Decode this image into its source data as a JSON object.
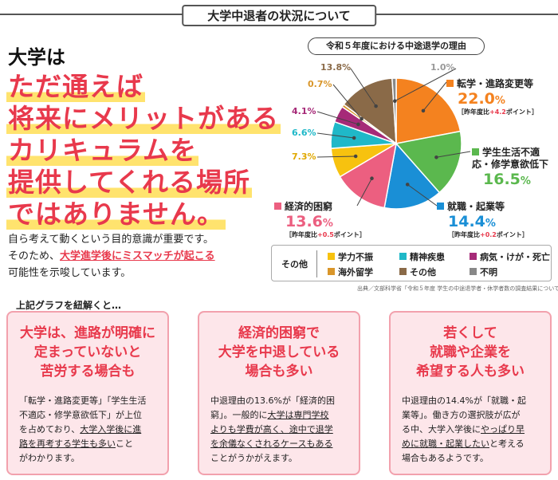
{
  "header": {
    "title": "大学中退者の状況について"
  },
  "headline": {
    "sub": "大学は",
    "lines": [
      "ただ通えば",
      "将来にメリットがある",
      "カリキュラムを",
      "提供してくれる場所",
      "ではありません。"
    ]
  },
  "body": {
    "p1": "自ら考えて動くという目的意識が重要です。",
    "p2a": "そのため、",
    "p2b": "大学進学後にミスマッチが起こる",
    "p3": "可能性を示唆しています。"
  },
  "chart_title": "令和５年度における中途退学の理由",
  "chart_data": {
    "type": "pie",
    "title": "令和５年度における中途退学の理由",
    "unit": "%",
    "slices": [
      {
        "label": "転学・進路変更等",
        "value": 22.0,
        "display": "22.0",
        "note_prefix": "［昨年度比",
        "note_change": "+4.2",
        "note_suffix": "ポイント］",
        "color": "#f4821f"
      },
      {
        "label": "学生生活不適応・修学意欲低下",
        "value": 16.5,
        "display": "16.5",
        "color": "#5bb84e"
      },
      {
        "label": "就職・起業等",
        "value": 14.4,
        "display": "14.4",
        "note_prefix": "［昨年度比",
        "note_change": "+0.2",
        "note_suffix": "ポイント］",
        "color": "#1a8fd6"
      },
      {
        "label": "経済的困窮",
        "value": 13.6,
        "display": "13.6",
        "note_prefix": "［昨年度比",
        "note_change": "+0.5",
        "note_suffix": "ポイント］",
        "color": "#ec5f80"
      },
      {
        "label": "学力不振",
        "value": 7.3,
        "display": "7.3%",
        "color": "#f7c20f"
      },
      {
        "label": "精神疾患",
        "value": 6.6,
        "display": "6.6%",
        "color": "#1fb8c8"
      },
      {
        "label": "病気・けが・死亡",
        "value": 4.1,
        "display": "4.1%",
        "color": "#a62a78"
      },
      {
        "label": "海外留学",
        "value": 0.7,
        "display": "0.7%",
        "color": "#d9962a"
      },
      {
        "label": "その他",
        "value": 13.8,
        "display": "13.8%",
        "color": "#8a6a48"
      },
      {
        "label": "不明",
        "value": 1.0,
        "display": "1.0%",
        "color": "#888888"
      }
    ]
  },
  "other_box": {
    "label": "その他"
  },
  "source": "出典／文部科学省「令和５年度 学生の中途退学者・休学者数の調査結果について」",
  "interp_title": "上記グラフを紐解くと…",
  "cards": [
    {
      "title1": "大学は、進路が明確に",
      "title2": "定まっていないと",
      "title3": "苦労する場合も",
      "t1": "「転学・進路変更等」「学生生活",
      "t2": "不適応・修学意欲低下」が上位",
      "t3a": "を占めており、",
      "t3b": "大学入学後に進",
      "t4a": "路を再考する学生も多い",
      "t4b": "こと",
      "t5": "がわかります。"
    },
    {
      "title1": "経済的困窮で",
      "title2": "大学を中退している",
      "title3": "場合も多い",
      "t1": "中退理由の13.6%が「経済的困",
      "t2a": "窮」。一般的に",
      "t2b": "大学は専門学校",
      "t3": "よりも学費が高く、途中で退学",
      "t4": "を余儀なくされるケースもある",
      "t5": "ことがうかがえます。"
    },
    {
      "title1": "若くして",
      "title2": "就職や企業を",
      "title3": "希望する人も多い",
      "t1": "中退理由の14.4%が「就職・起",
      "t2": "業等」。働き方の選択肢が広が",
      "t3a": "る中、大学入学後に",
      "t3b": "やっぱり早",
      "t4a": "めに就職・起業したい",
      "t4b": "と考える",
      "t5": "場合もあるようです。"
    }
  ]
}
